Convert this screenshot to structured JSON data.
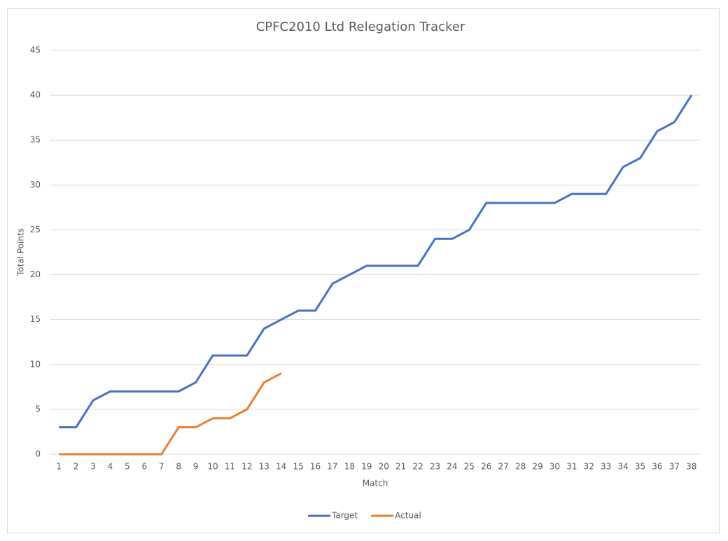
{
  "chart_data": {
    "type": "line",
    "title": "CPFC2010 Ltd Relegation Tracker",
    "x_label": "Match",
    "y_label": "Total Points",
    "categories": [
      1,
      2,
      3,
      4,
      5,
      6,
      7,
      8,
      9,
      10,
      11,
      12,
      13,
      14,
      15,
      16,
      17,
      18,
      19,
      20,
      21,
      22,
      23,
      24,
      25,
      26,
      27,
      28,
      29,
      30,
      31,
      32,
      33,
      34,
      35,
      36,
      37,
      38
    ],
    "series": [
      {
        "name": "Target",
        "color": "#4472c4",
        "values": [
          3,
          3,
          6,
          7,
          7,
          7,
          7,
          7,
          8,
          11,
          11,
          11,
          14,
          15,
          16,
          16,
          19,
          20,
          21,
          21,
          21,
          21,
          24,
          24,
          25,
          28,
          28,
          28,
          28,
          28,
          29,
          29,
          29,
          32,
          33,
          36,
          37,
          40
        ]
      },
      {
        "name": "Actual",
        "color": "#ed7d31",
        "values": [
          0,
          0,
          0,
          0,
          0,
          0,
          0,
          3,
          3,
          4,
          4,
          5,
          8,
          9,
          null,
          null,
          null,
          null,
          null,
          null,
          null,
          null,
          null,
          null,
          null,
          null,
          null,
          null,
          null,
          null,
          null,
          null,
          null,
          null,
          null,
          null,
          null,
          null
        ]
      }
    ],
    "ylim": [
      0,
      45
    ],
    "yticks": [
      0,
      5,
      10,
      15,
      20,
      25,
      30,
      35,
      40,
      45
    ],
    "grid": true,
    "legend": "bottom"
  }
}
